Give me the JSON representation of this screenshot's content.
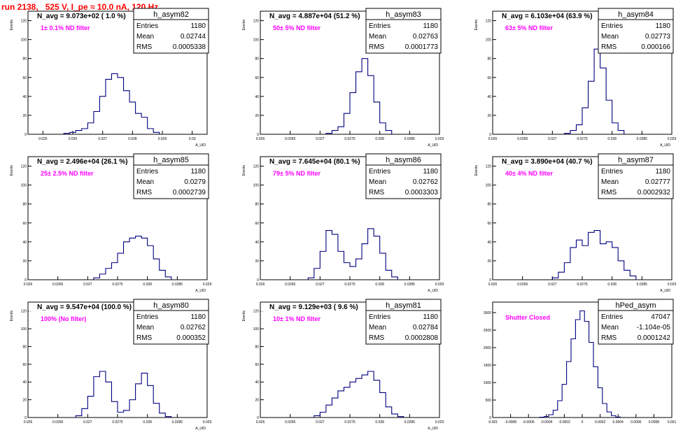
{
  "run_title": "run 2138,   525 V, I_pe ≈ 10.0 nA, 120 Hz",
  "stat_labels": {
    "entries": "Entries",
    "mean": "Mean",
    "rms": "RMS"
  },
  "colors": {
    "histogram": "#000080",
    "annotation": "#ff00ff",
    "run_title": "#ff0000",
    "frame": "#000000"
  },
  "chart_data": [
    {
      "type": "histogram",
      "name": "h_asym82",
      "title": "N_avg = 9.073e+02 ( 1.0 %)",
      "annotation": "1± 0.1% ND filter",
      "ylabel": "Events",
      "xlabel": "A_UID",
      "xlim": [
        0.0245,
        0.0305
      ],
      "ylim": [
        0,
        130
      ],
      "xticks": [
        0.025,
        0.026,
        0.027,
        0.028,
        0.029,
        0.03
      ],
      "xtick_labels": [
        "0.025",
        "0.026",
        "0.027",
        "0.028",
        "0.029",
        "0.03"
      ],
      "yticks": [
        0,
        20,
        40,
        60,
        80,
        100,
        120
      ],
      "ytick_labels": [
        "0",
        "20",
        "40",
        "60",
        "80",
        "100",
        "120"
      ],
      "stats": {
        "entries": "1180",
        "mean": "0.02744",
        "rms": "0.0005338"
      },
      "bins": [
        [
          0.0258,
          1
        ],
        [
          0.026,
          2
        ],
        [
          0.0262,
          4
        ],
        [
          0.0264,
          6
        ],
        [
          0.0266,
          12
        ],
        [
          0.0268,
          24
        ],
        [
          0.027,
          40
        ],
        [
          0.0272,
          58
        ],
        [
          0.0274,
          64
        ],
        [
          0.0276,
          60
        ],
        [
          0.0278,
          46
        ],
        [
          0.028,
          34
        ],
        [
          0.0282,
          22
        ],
        [
          0.0284,
          18
        ],
        [
          0.0286,
          6
        ],
        [
          0.0288,
          2
        ]
      ]
    },
    {
      "type": "histogram",
      "name": "h_asym83",
      "title": "N_avg = 4.887e+04 (51.2 %)",
      "annotation": "50± 5% ND filter",
      "ylabel": "Events",
      "xlabel": "A_UID",
      "xlim": [
        0.026,
        0.029
      ],
      "ylim": [
        0,
        130
      ],
      "xticks": [
        0.026,
        0.0265,
        0.027,
        0.0275,
        0.028,
        0.0285,
        0.029
      ],
      "xtick_labels": [
        "0.026",
        "0.0265",
        "0.027",
        "0.0275",
        "0.028",
        "0.0285",
        "0.029"
      ],
      "yticks": [
        0,
        20,
        40,
        60,
        80,
        100,
        120
      ],
      "ytick_labels": [
        "0",
        "20",
        "40",
        "60",
        "80",
        "100",
        "120"
      ],
      "stats": {
        "entries": "1180",
        "mean": "0.02763",
        "rms": "0.0001773"
      },
      "bins": [
        [
          0.02715,
          1
        ],
        [
          0.02725,
          4
        ],
        [
          0.02735,
          8
        ],
        [
          0.02745,
          22
        ],
        [
          0.02755,
          44
        ],
        [
          0.02765,
          66
        ],
        [
          0.02775,
          80
        ],
        [
          0.02785,
          62
        ],
        [
          0.02795,
          34
        ],
        [
          0.02805,
          12
        ],
        [
          0.02815,
          4
        ]
      ]
    },
    {
      "type": "histogram",
      "name": "h_asym84",
      "title": "N_avg = 6.103e+04 (63.9 %)",
      "annotation": "63± 5% ND filter",
      "ylabel": "Events",
      "xlabel": "A_UID",
      "xlim": [
        0.026,
        0.029
      ],
      "ylim": [
        0,
        130
      ],
      "xticks": [
        0.026,
        0.0265,
        0.027,
        0.0275,
        0.028,
        0.0285,
        0.029
      ],
      "xtick_labels": [
        "0.026",
        "0.0265",
        "0.027",
        "0.0275",
        "0.028",
        "0.0285",
        "0.029"
      ],
      "yticks": [
        0,
        20,
        40,
        60,
        80,
        100,
        120
      ],
      "ytick_labels": [
        "0",
        "20",
        "40",
        "60",
        "80",
        "100",
        "120"
      ],
      "stats": {
        "entries": "1180",
        "mean": "0.02773",
        "rms": "0.000166"
      },
      "bins": [
        [
          0.02725,
          1
        ],
        [
          0.02735,
          4
        ],
        [
          0.02745,
          10
        ],
        [
          0.02755,
          28
        ],
        [
          0.02765,
          56
        ],
        [
          0.02775,
          90
        ],
        [
          0.02785,
          70
        ],
        [
          0.02795,
          36
        ],
        [
          0.02805,
          12
        ],
        [
          0.02815,
          4
        ]
      ]
    },
    {
      "type": "histogram",
      "name": "h_asym85",
      "title": "N_avg = 2.496e+04 (26.1 %)",
      "annotation": "25± 2.5% ND filter",
      "ylabel": "Events",
      "xlabel": "A_UID",
      "xlim": [
        0.026,
        0.029
      ],
      "ylim": [
        0,
        130
      ],
      "xticks": [
        0.026,
        0.0265,
        0.027,
        0.0275,
        0.028,
        0.0285,
        0.029
      ],
      "xtick_labels": [
        "0.026",
        "0.0265",
        "0.027",
        "0.0275",
        "0.028",
        "0.0285",
        "0.029"
      ],
      "yticks": [
        0,
        20,
        40,
        60,
        80,
        100,
        120
      ],
      "ytick_labels": [
        "0",
        "20",
        "40",
        "60",
        "80",
        "100",
        "120"
      ],
      "stats": {
        "entries": "1180",
        "mean": "0.0279",
        "rms": "0.0002739"
      },
      "bins": [
        [
          0.02715,
          2
        ],
        [
          0.02725,
          6
        ],
        [
          0.02735,
          12
        ],
        [
          0.02745,
          18
        ],
        [
          0.02755,
          28
        ],
        [
          0.02765,
          40
        ],
        [
          0.02775,
          44
        ],
        [
          0.02785,
          46
        ],
        [
          0.02795,
          44
        ],
        [
          0.02805,
          36
        ],
        [
          0.02815,
          22
        ],
        [
          0.02825,
          10
        ],
        [
          0.02835,
          3
        ]
      ]
    },
    {
      "type": "histogram",
      "name": "h_asym86",
      "title": "N_avg = 7.645e+04 (80.1 %)",
      "annotation": "79± 5% ND filter",
      "ylabel": "Events",
      "xlabel": "A_UID",
      "xlim": [
        0.026,
        0.029
      ],
      "ylim": [
        0,
        130
      ],
      "xticks": [
        0.026,
        0.0265,
        0.027,
        0.0275,
        0.028,
        0.0285,
        0.029
      ],
      "xtick_labels": [
        "0.026",
        "0.0265",
        "0.027",
        "0.0275",
        "0.028",
        "0.0285",
        "0.029"
      ],
      "yticks": [
        0,
        20,
        40,
        60,
        80,
        100,
        120
      ],
      "ytick_labels": [
        "0",
        "20",
        "40",
        "60",
        "80",
        "100",
        "120"
      ],
      "stats": {
        "entries": "1180",
        "mean": "0.02762",
        "rms": "0.0003303"
      },
      "bins": [
        [
          0.02685,
          2
        ],
        [
          0.02695,
          12
        ],
        [
          0.02705,
          30
        ],
        [
          0.02715,
          52
        ],
        [
          0.02725,
          48
        ],
        [
          0.02735,
          30
        ],
        [
          0.02745,
          18
        ],
        [
          0.02755,
          14
        ],
        [
          0.02765,
          22
        ],
        [
          0.02775,
          38
        ],
        [
          0.02785,
          54
        ],
        [
          0.02795,
          46
        ],
        [
          0.02805,
          28
        ],
        [
          0.02815,
          10
        ],
        [
          0.02825,
          3
        ]
      ]
    },
    {
      "type": "histogram",
      "name": "h_asym87",
      "title": "N_avg = 3.890e+04 (40.7 %)",
      "annotation": "40± 4% ND filter",
      "ylabel": "Events",
      "xlabel": "A_UID",
      "xlim": [
        0.026,
        0.029
      ],
      "ylim": [
        0,
        130
      ],
      "xticks": [
        0.026,
        0.0265,
        0.027,
        0.0275,
        0.028,
        0.0285,
        0.029
      ],
      "xtick_labels": [
        "0.026",
        "0.0265",
        "0.027",
        "0.0275",
        "0.028",
        "0.0285",
        "0.029"
      ],
      "yticks": [
        0,
        20,
        40,
        60,
        80,
        100,
        120
      ],
      "ytick_labels": [
        "0",
        "20",
        "40",
        "60",
        "80",
        "100",
        "120"
      ],
      "stats": {
        "entries": "1180",
        "mean": "0.02777",
        "rms": "0.0002932"
      },
      "bins": [
        [
          0.02705,
          2
        ],
        [
          0.02715,
          8
        ],
        [
          0.02725,
          18
        ],
        [
          0.02735,
          34
        ],
        [
          0.02745,
          42
        ],
        [
          0.02755,
          36
        ],
        [
          0.02765,
          50
        ],
        [
          0.02775,
          52
        ],
        [
          0.02785,
          38
        ],
        [
          0.02795,
          40
        ],
        [
          0.02805,
          34
        ],
        [
          0.02815,
          20
        ],
        [
          0.02825,
          10
        ],
        [
          0.02835,
          4
        ]
      ]
    },
    {
      "type": "histogram",
      "name": "h_asym80",
      "title": "N_avg = 9.547e+04 (100.0 %)",
      "annotation": "100% (No filter)",
      "ylabel": "Events",
      "xlabel": "A_UID",
      "xlim": [
        0.026,
        0.029
      ],
      "ylim": [
        0,
        130
      ],
      "xticks": [
        0.026,
        0.0265,
        0.027,
        0.0275,
        0.028,
        0.0285,
        0.029
      ],
      "xtick_labels": [
        "0.026",
        "0.0265",
        "0.027",
        "0.0275",
        "0.028",
        "0.0285",
        "0.029"
      ],
      "yticks": [
        0,
        20,
        40,
        60,
        80,
        100,
        120
      ],
      "ytick_labels": [
        "0",
        "20",
        "40",
        "60",
        "80",
        "100",
        "120"
      ],
      "stats": {
        "entries": "1180",
        "mean": "0.02762",
        "rms": "0.000352"
      },
      "bins": [
        [
          0.02685,
          2
        ],
        [
          0.02695,
          10
        ],
        [
          0.02705,
          24
        ],
        [
          0.02715,
          46
        ],
        [
          0.02725,
          52
        ],
        [
          0.02735,
          40
        ],
        [
          0.02745,
          18
        ],
        [
          0.02755,
          6
        ],
        [
          0.02765,
          8
        ],
        [
          0.02775,
          20
        ],
        [
          0.02785,
          38
        ],
        [
          0.02795,
          50
        ],
        [
          0.02805,
          36
        ],
        [
          0.02815,
          16
        ],
        [
          0.02825,
          5
        ],
        [
          0.02835,
          1
        ]
      ]
    },
    {
      "type": "histogram",
      "name": "h_asym81",
      "title": "N_avg = 9.129e+03 ( 9.6 %)",
      "annotation": "10± 1% ND filter",
      "ylabel": "Events",
      "xlabel": "A_UID",
      "xlim": [
        0.026,
        0.029
      ],
      "ylim": [
        0,
        130
      ],
      "xticks": [
        0.026,
        0.0265,
        0.027,
        0.0275,
        0.028,
        0.0285,
        0.029
      ],
      "xtick_labels": [
        "0.026",
        "0.0265",
        "0.027",
        "0.0275",
        "0.028",
        "0.0285",
        "0.029"
      ],
      "yticks": [
        0,
        20,
        40,
        60,
        80,
        100,
        120
      ],
      "ytick_labels": [
        "0",
        "20",
        "40",
        "60",
        "80",
        "100",
        "120"
      ],
      "stats": {
        "entries": "1180",
        "mean": "0.02784",
        "rms": "0.0002808"
      },
      "bins": [
        [
          0.02695,
          2
        ],
        [
          0.02705,
          6
        ],
        [
          0.02715,
          14
        ],
        [
          0.02725,
          22
        ],
        [
          0.02735,
          30
        ],
        [
          0.02745,
          34
        ],
        [
          0.02755,
          40
        ],
        [
          0.02765,
          44
        ],
        [
          0.02775,
          48
        ],
        [
          0.02785,
          52
        ],
        [
          0.02795,
          42
        ],
        [
          0.02805,
          28
        ],
        [
          0.02815,
          12
        ],
        [
          0.02825,
          4
        ],
        [
          0.02835,
          1
        ]
      ]
    },
    {
      "type": "histogram",
      "name": "hPed_asym",
      "title": "",
      "annotation": "Shutter Closed",
      "ylabel": "",
      "xlabel": "",
      "xlim": [
        -0.001,
        0.001
      ],
      "ylim": [
        0,
        3300
      ],
      "xticks": [
        -0.001,
        -0.0008,
        -0.0006,
        -0.0004,
        -0.0002,
        0,
        0.0002,
        0.0004,
        0.0006,
        0.0008,
        0.001
      ],
      "xtick_labels": [
        "-0.001",
        "-0.0008",
        "-0.0006",
        "-0.0004",
        "-0.0002",
        "0",
        "0.0002",
        "0.0004",
        "0.0006",
        "0.0008",
        "0.001"
      ],
      "yticks": [
        0,
        500,
        1000,
        1500,
        2000,
        2500,
        3000
      ],
      "ytick_labels": [
        "0",
        "500",
        "1000",
        "1500",
        "2000",
        "2500",
        "3000"
      ],
      "stats": {
        "entries": "47047",
        "mean": "-1.104e-05",
        "rms": "0.0001242"
      },
      "bins": [
        [
          -0.00045,
          10
        ],
        [
          -0.0004,
          30
        ],
        [
          -0.00035,
          80
        ],
        [
          -0.0003,
          210
        ],
        [
          -0.00025,
          480
        ],
        [
          -0.0002,
          950
        ],
        [
          -0.00015,
          1600
        ],
        [
          -0.0001,
          2250
        ],
        [
          -5e-05,
          2800
        ],
        [
          0,
          3050
        ],
        [
          5e-05,
          2750
        ],
        [
          0.0001,
          2150
        ],
        [
          0.00015,
          1450
        ],
        [
          0.0002,
          850
        ],
        [
          0.00025,
          400
        ],
        [
          0.0003,
          160
        ],
        [
          0.00035,
          55
        ],
        [
          0.0004,
          15
        ]
      ]
    }
  ]
}
